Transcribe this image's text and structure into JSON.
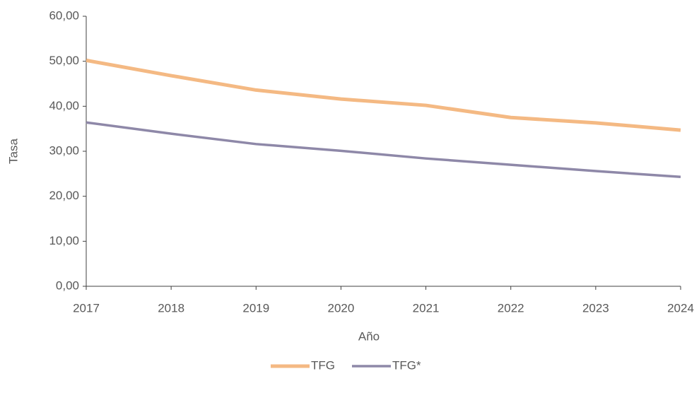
{
  "chart_data": {
    "type": "line",
    "x_label": "Año",
    "y_label": "Tasa",
    "categories": [
      "2017",
      "2018",
      "2019",
      "2020",
      "2021",
      "2022",
      "2023",
      "2024"
    ],
    "series": [
      {
        "name": "TFG",
        "color": "#f4b983",
        "values": [
          50.2,
          46.8,
          43.6,
          41.6,
          40.2,
          37.5,
          36.3,
          34.7
        ]
      },
      {
        "name": "TFG*",
        "color": "#8e88a8",
        "values": [
          36.4,
          33.9,
          31.6,
          30.1,
          28.4,
          27.0,
          25.6,
          24.3
        ]
      }
    ],
    "ylim": [
      0,
      60
    ],
    "yticks": [
      {
        "value": 0,
        "label": "0,00"
      },
      {
        "value": 10,
        "label": "10,00"
      },
      {
        "value": 20,
        "label": "20,00"
      },
      {
        "value": 30,
        "label": "30,00"
      },
      {
        "value": 40,
        "label": "40,00"
      },
      {
        "value": 50,
        "label": "50,00"
      },
      {
        "value": 60,
        "label": "60,00"
      }
    ],
    "grid": false,
    "legend": "bottom"
  }
}
